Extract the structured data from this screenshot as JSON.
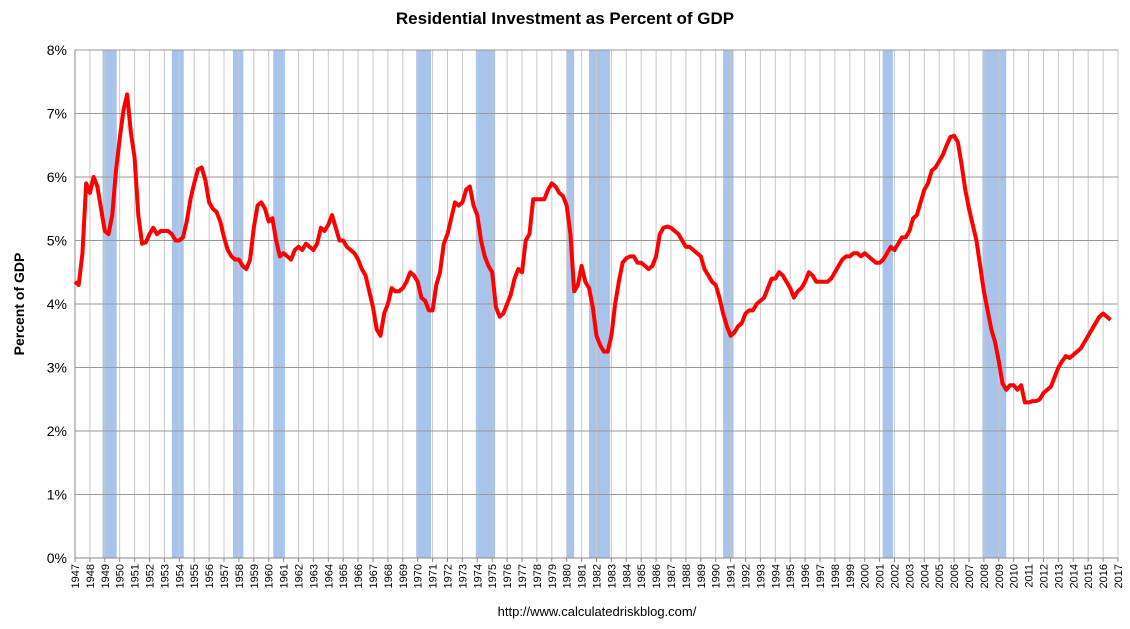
{
  "chart_data": {
    "type": "line",
    "title": "Residential Investment as Percent of GDP",
    "y_label": "Percent of GDP",
    "source": "http://www.calculatedriskblog.com/",
    "color": "#ff0000",
    "recession_color": "#a9c4eb",
    "grid": true,
    "xlim": [
      1947,
      2017
    ],
    "ylim": [
      0,
      8
    ],
    "yticks": [
      {
        "value": 0,
        "label": "0%"
      },
      {
        "value": 1,
        "label": "1%"
      },
      {
        "value": 2,
        "label": "2%"
      },
      {
        "value": 3,
        "label": "3%"
      },
      {
        "value": 4,
        "label": "4%"
      },
      {
        "value": 5,
        "label": "5%"
      },
      {
        "value": 6,
        "label": "6%"
      },
      {
        "value": 7,
        "label": "7%"
      },
      {
        "value": 8,
        "label": "8%"
      }
    ],
    "xticks": [
      1947,
      1948,
      1949,
      1950,
      1951,
      1952,
      1953,
      1954,
      1955,
      1956,
      1957,
      1958,
      1959,
      1960,
      1961,
      1962,
      1963,
      1964,
      1965,
      1966,
      1967,
      1968,
      1969,
      1970,
      1971,
      1972,
      1973,
      1974,
      1975,
      1976,
      1977,
      1978,
      1979,
      1980,
      1981,
      1982,
      1983,
      1984,
      1985,
      1986,
      1987,
      1988,
      1989,
      1990,
      1991,
      1992,
      1993,
      1994,
      1995,
      1996,
      1997,
      1998,
      1999,
      2000,
      2001,
      2002,
      2003,
      2004,
      2005,
      2006,
      2007,
      2008,
      2009,
      2010,
      2011,
      2012,
      2013,
      2014,
      2015,
      2016,
      2017
    ],
    "recessions": [
      [
        1948.85,
        1949.8
      ],
      [
        1953.5,
        1954.3
      ],
      [
        1957.6,
        1958.3
      ],
      [
        1960.3,
        1961.1
      ],
      [
        1969.9,
        1970.9
      ],
      [
        1973.9,
        1975.2
      ],
      [
        1980.0,
        1980.5
      ],
      [
        1981.5,
        1982.9
      ],
      [
        1990.5,
        1991.2
      ],
      [
        2001.2,
        2001.9
      ],
      [
        2007.9,
        2009.5
      ]
    ],
    "x": [
      1947,
      1947.25,
      1947.5,
      1947.75,
      1948,
      1948.25,
      1948.5,
      1948.75,
      1949,
      1949.25,
      1949.5,
      1949.75,
      1950,
      1950.25,
      1950.5,
      1950.75,
      1951,
      1951.25,
      1951.5,
      1951.75,
      1952,
      1952.25,
      1952.5,
      1952.75,
      1953,
      1953.25,
      1953.5,
      1953.75,
      1954,
      1954.25,
      1954.5,
      1954.75,
      1955,
      1955.25,
      1955.5,
      1955.75,
      1956,
      1956.25,
      1956.5,
      1956.75,
      1957,
      1957.25,
      1957.5,
      1957.75,
      1958,
      1958.25,
      1958.5,
      1958.75,
      1959,
      1959.25,
      1959.5,
      1959.75,
      1960,
      1960.25,
      1960.5,
      1960.75,
      1961,
      1961.25,
      1961.5,
      1961.75,
      1962,
      1962.25,
      1962.5,
      1962.75,
      1963,
      1963.25,
      1963.5,
      1963.75,
      1964,
      1964.25,
      1964.5,
      1964.75,
      1965,
      1965.25,
      1965.5,
      1965.75,
      1966,
      1966.25,
      1966.5,
      1966.75,
      1967,
      1967.25,
      1967.5,
      1967.75,
      1968,
      1968.25,
      1968.5,
      1968.75,
      1969,
      1969.25,
      1969.5,
      1969.75,
      1970,
      1970.25,
      1970.5,
      1970.75,
      1971,
      1971.25,
      1971.5,
      1971.75,
      1972,
      1972.25,
      1972.5,
      1972.75,
      1973,
      1973.25,
      1973.5,
      1973.75,
      1974,
      1974.25,
      1974.5,
      1974.75,
      1975,
      1975.25,
      1975.5,
      1975.75,
      1976,
      1976.25,
      1976.5,
      1976.75,
      1977,
      1977.25,
      1977.5,
      1977.75,
      1978,
      1978.25,
      1978.5,
      1978.75,
      1979,
      1979.25,
      1979.5,
      1979.75,
      1980,
      1980.25,
      1980.5,
      1980.75,
      1981,
      1981.25,
      1981.5,
      1981.75,
      1982,
      1982.25,
      1982.5,
      1982.75,
      1983,
      1983.25,
      1983.5,
      1983.75,
      1984,
      1984.25,
      1984.5,
      1984.75,
      1985,
      1985.25,
      1985.5,
      1985.75,
      1986,
      1986.25,
      1986.5,
      1986.75,
      1987,
      1987.25,
      1987.5,
      1987.75,
      1988,
      1988.25,
      1988.5,
      1988.75,
      1989,
      1989.25,
      1989.5,
      1989.75,
      1990,
      1990.25,
      1990.5,
      1990.75,
      1991,
      1991.25,
      1991.5,
      1991.75,
      1992,
      1992.25,
      1992.5,
      1992.75,
      1993,
      1993.25,
      1993.5,
      1993.75,
      1994,
      1994.25,
      1994.5,
      1994.75,
      1995,
      1995.25,
      1995.5,
      1995.75,
      1996,
      1996.25,
      1996.5,
      1996.75,
      1997,
      1997.25,
      1997.5,
      1997.75,
      1998,
      1998.25,
      1998.5,
      1998.75,
      1999,
      1999.25,
      1999.5,
      1999.75,
      2000,
      2000.25,
      2000.5,
      2000.75,
      2001,
      2001.25,
      2001.5,
      2001.75,
      2002,
      2002.25,
      2002.5,
      2002.75,
      2003,
      2003.25,
      2003.5,
      2003.75,
      2004,
      2004.25,
      2004.5,
      2004.75,
      2005,
      2005.25,
      2005.5,
      2005.75,
      2006,
      2006.25,
      2006.5,
      2006.75,
      2007,
      2007.25,
      2007.5,
      2007.75,
      2008,
      2008.25,
      2008.5,
      2008.75,
      2009,
      2009.25,
      2009.5,
      2009.75,
      2010,
      2010.25,
      2010.5,
      2010.75,
      2011,
      2011.25,
      2011.5,
      2011.75,
      2012,
      2012.25,
      2012.5,
      2012.75,
      2013,
      2013.25,
      2013.5,
      2013.75,
      2014,
      2014.25,
      2014.5,
      2014.75,
      2015,
      2015.25,
      2015.5,
      2015.75,
      2016,
      2016.25,
      2016.5
    ],
    "values": [
      4.35,
      4.3,
      4.8,
      5.9,
      5.75,
      6.0,
      5.85,
      5.5,
      5.15,
      5.1,
      5.4,
      6.1,
      6.6,
      7.05,
      7.3,
      6.7,
      6.3,
      5.4,
      4.95,
      4.97,
      5.1,
      5.2,
      5.1,
      5.15,
      5.15,
      5.15,
      5.1,
      5.0,
      5.0,
      5.05,
      5.3,
      5.65,
      5.9,
      6.12,
      6.15,
      5.95,
      5.6,
      5.5,
      5.45,
      5.3,
      5.05,
      4.85,
      4.75,
      4.7,
      4.7,
      4.6,
      4.55,
      4.7,
      5.2,
      5.55,
      5.6,
      5.5,
      5.3,
      5.35,
      5.0,
      4.75,
      4.8,
      4.75,
      4.7,
      4.85,
      4.9,
      4.85,
      4.95,
      4.9,
      4.85,
      4.95,
      5.2,
      5.15,
      5.25,
      5.4,
      5.2,
      5.0,
      5.0,
      4.9,
      4.85,
      4.8,
      4.7,
      4.55,
      4.45,
      4.2,
      3.95,
      3.6,
      3.5,
      3.85,
      4.0,
      4.25,
      4.2,
      4.2,
      4.25,
      4.35,
      4.5,
      4.45,
      4.35,
      4.1,
      4.05,
      3.9,
      3.9,
      4.3,
      4.5,
      4.95,
      5.1,
      5.35,
      5.6,
      5.55,
      5.6,
      5.8,
      5.85,
      5.55,
      5.4,
      5.0,
      4.75,
      4.6,
      4.5,
      3.95,
      3.8,
      3.85,
      4.0,
      4.15,
      4.4,
      4.55,
      4.5,
      5.0,
      5.1,
      5.65,
      5.65,
      5.65,
      5.65,
      5.8,
      5.9,
      5.85,
      5.75,
      5.7,
      5.55,
      5.1,
      4.2,
      4.3,
      4.6,
      4.35,
      4.25,
      3.95,
      3.5,
      3.35,
      3.25,
      3.25,
      3.5,
      4.0,
      4.35,
      4.65,
      4.72,
      4.75,
      4.75,
      4.65,
      4.65,
      4.6,
      4.55,
      4.6,
      4.75,
      5.1,
      5.2,
      5.22,
      5.2,
      5.15,
      5.1,
      5.0,
      4.9,
      4.9,
      4.85,
      4.8,
      4.75,
      4.55,
      4.45,
      4.35,
      4.3,
      4.1,
      3.85,
      3.65,
      3.5,
      3.55,
      3.65,
      3.7,
      3.85,
      3.9,
      3.9,
      4.0,
      4.05,
      4.1,
      4.25,
      4.4,
      4.4,
      4.5,
      4.45,
      4.35,
      4.25,
      4.1,
      4.2,
      4.25,
      4.35,
      4.5,
      4.45,
      4.35,
      4.35,
      4.35,
      4.35,
      4.4,
      4.5,
      4.6,
      4.7,
      4.75,
      4.75,
      4.8,
      4.8,
      4.75,
      4.8,
      4.75,
      4.7,
      4.65,
      4.65,
      4.7,
      4.8,
      4.9,
      4.85,
      4.95,
      5.05,
      5.05,
      5.15,
      5.35,
      5.4,
      5.6,
      5.8,
      5.9,
      6.1,
      6.15,
      6.25,
      6.35,
      6.5,
      6.63,
      6.65,
      6.55,
      6.2,
      5.8,
      5.5,
      5.25,
      5.0,
      4.6,
      4.2,
      3.9,
      3.6,
      3.4,
      3.1,
      2.75,
      2.65,
      2.72,
      2.72,
      2.65,
      2.72,
      2.45,
      2.45,
      2.47,
      2.47,
      2.5,
      2.6,
      2.65,
      2.7,
      2.85,
      3.0,
      3.1,
      3.18,
      3.15,
      3.2,
      3.25,
      3.3,
      3.4,
      3.5,
      3.6,
      3.7,
      3.8,
      3.85,
      3.8,
      3.75
    ]
  }
}
